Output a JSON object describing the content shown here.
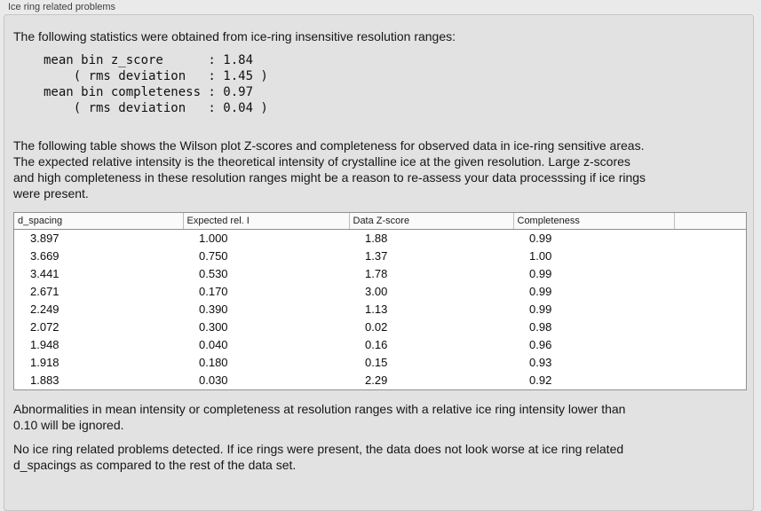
{
  "panel": {
    "title": "Ice ring related problems"
  },
  "intro": {
    "text": "The following statistics were obtained from ice-ring insensitive resolution ranges:"
  },
  "stats_block": {
    "lines": [
      "mean bin z_score      : 1.84",
      "    ( rms deviation   : 1.45 )",
      "mean bin completeness : 0.97",
      "    ( rms deviation   : 0.04 )"
    ]
  },
  "table_intro": {
    "lines": [
      "The following table shows the Wilson plot Z-scores and completeness for observed data in ice-ring sensitive areas.",
      "The expected relative intensity is the theoretical intensity of crystalline ice at the given resolution. Large z-scores",
      "and high completeness in these resolution ranges might be a reason to re-assess your data processsing if ice rings",
      "were present."
    ]
  },
  "table": {
    "columns": [
      "d_spacing",
      "Expected rel. I",
      "Data Z-score",
      "Completeness",
      ""
    ],
    "rows": [
      [
        "3.897",
        "1.000",
        "1.88",
        "0.99"
      ],
      [
        "3.669",
        "0.750",
        "1.37",
        "1.00"
      ],
      [
        "3.441",
        "0.530",
        "1.78",
        "0.99"
      ],
      [
        "2.671",
        "0.170",
        "3.00",
        "0.99"
      ],
      [
        "2.249",
        "0.390",
        "1.13",
        "0.99"
      ],
      [
        "2.072",
        "0.300",
        "0.02",
        "0.98"
      ],
      [
        "1.948",
        "0.040",
        "0.16",
        "0.96"
      ],
      [
        "1.918",
        "0.180",
        "0.15",
        "0.93"
      ],
      [
        "1.883",
        "0.030",
        "2.29",
        "0.92"
      ]
    ]
  },
  "notes": {
    "ignore_lines": [
      "Abnormalities in mean intensity or completeness at resolution ranges with a relative ice ring intensity lower than",
      "0.10 will be ignored."
    ],
    "conclusion_lines": [
      "No ice ring related problems detected. If ice rings were present, the data does not look worse at ice ring related",
      "d_spacings as compared to the rest of the data set."
    ]
  }
}
